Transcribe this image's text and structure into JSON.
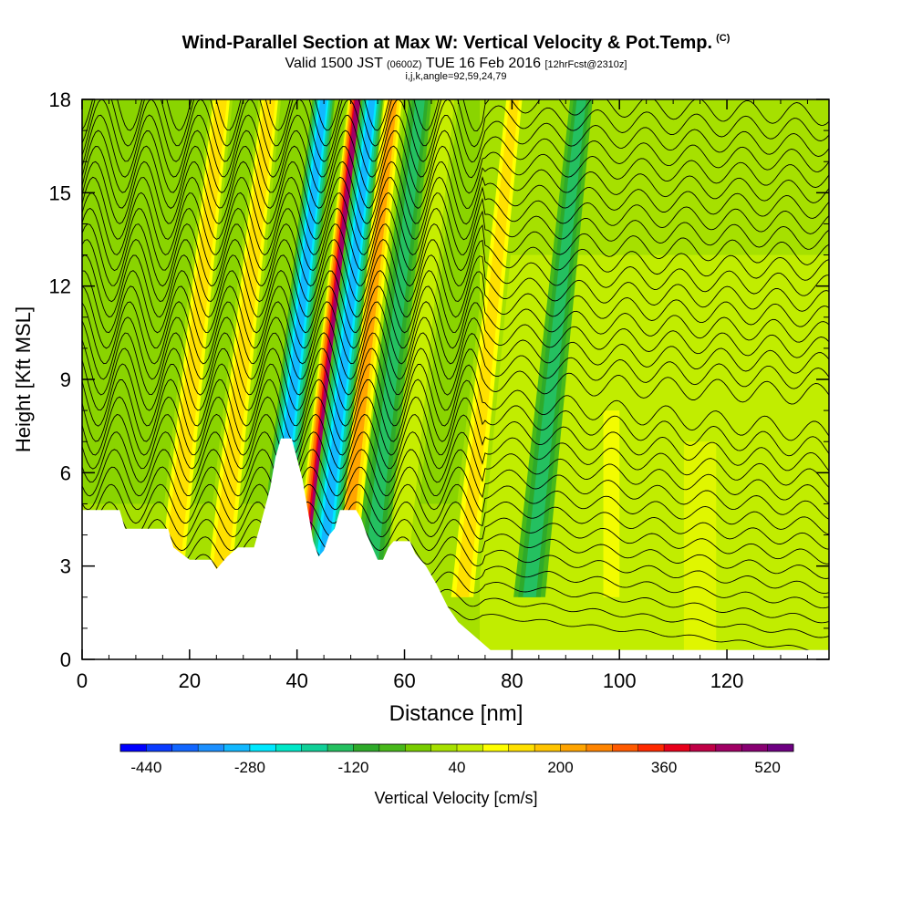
{
  "chart_data": {
    "type": "heatmap",
    "title": "Wind-Parallel Section at Max W: Vertical Velocity & Pot.Temp.",
    "title_mark": "(C)",
    "subtitle_main": "Valid 1500 JST",
    "subtitle_z": "(0600Z)",
    "subtitle_date": "TUE 16 Feb 2016",
    "subtitle_fcst": "[12hrFcst@2310z]",
    "subtitle2": "i,j,k,angle=92,59,24,79",
    "xlabel": "Distance [nm]",
    "ylabel": "Height [Kft MSL]",
    "xlim": [
      0,
      139
    ],
    "ylim": [
      0,
      18
    ],
    "x_ticks": [
      "0",
      "20",
      "40",
      "60",
      "80",
      "100",
      "120"
    ],
    "y_ticks": [
      "0",
      "3",
      "6",
      "9",
      "12",
      "15",
      "18"
    ],
    "colorbar_label": "Vertical Velocity [cm/s]",
    "colorbar_tick_labels": [
      "-440",
      "-280",
      "-120",
      "40",
      "200",
      "360",
      "520"
    ],
    "colorbar_colors": [
      "#0000ff",
      "#0a3cff",
      "#1266ff",
      "#1c90ff",
      "#12b8ff",
      "#00e8ff",
      "#00e8c8",
      "#10d098",
      "#24c060",
      "#2eaa2a",
      "#48b81a",
      "#78cc00",
      "#a6e000",
      "#c6ee00",
      "#ffff00",
      "#ffe000",
      "#ffc400",
      "#ffa400",
      "#ff8400",
      "#ff5a00",
      "#ff2a00",
      "#e8001a",
      "#c00046",
      "#a00064",
      "#880072",
      "#6e0082"
    ],
    "terrain_kft": [
      [
        0,
        4.8
      ],
      [
        7,
        4.8
      ],
      [
        8,
        4.2
      ],
      [
        16,
        4.2
      ],
      [
        17,
        3.6
      ],
      [
        20,
        3.2
      ],
      [
        24,
        3.2
      ],
      [
        25,
        2.9
      ],
      [
        27,
        3.3
      ],
      [
        29,
        3.6
      ],
      [
        32,
        3.6
      ],
      [
        33,
        4.2
      ],
      [
        35,
        5.5
      ],
      [
        36,
        6.5
      ],
      [
        37,
        7.1
      ],
      [
        39,
        7.1
      ],
      [
        41,
        5.8
      ],
      [
        42,
        4.8
      ],
      [
        43,
        3.8
      ],
      [
        44,
        3.3
      ],
      [
        45,
        3.5
      ],
      [
        46,
        4.0
      ],
      [
        47,
        4.2
      ],
      [
        48,
        4.8
      ],
      [
        51,
        4.8
      ],
      [
        52,
        4.5
      ],
      [
        53,
        4.0
      ],
      [
        54,
        3.6
      ],
      [
        55,
        3.2
      ],
      [
        56,
        3.2
      ],
      [
        57,
        3.6
      ],
      [
        58,
        3.8
      ],
      [
        61,
        3.8
      ],
      [
        62,
        3.4
      ],
      [
        64,
        3.0
      ],
      [
        66,
        2.4
      ],
      [
        68,
        1.7
      ],
      [
        70,
        1.2
      ],
      [
        72,
        0.9
      ],
      [
        74,
        0.6
      ],
      [
        76,
        0.3
      ],
      [
        120,
        0.3
      ],
      [
        125,
        0.3
      ],
      [
        127,
        0.3
      ],
      [
        139,
        0.3
      ]
    ],
    "updraft_bands": [
      {
        "x_base": 16,
        "w_cm_s": 200
      },
      {
        "x_base": 25,
        "w_cm_s": 200
      },
      {
        "x_base": 41.5,
        "w_cm_s": 520
      },
      {
        "x_base": 48,
        "w_cm_s": 240
      },
      {
        "x_base": 58,
        "w_cm_s": 120
      },
      {
        "x_base": 70.5,
        "w_cm_s": 160
      }
    ],
    "downdraft_bands": [
      {
        "x_base": 35,
        "w_cm_s": -300
      },
      {
        "x_base": 44,
        "w_cm_s": -300
      },
      {
        "x_base": 53,
        "w_cm_s": -140
      },
      {
        "x_base": 83,
        "w_cm_s": -140
      }
    ]
  }
}
